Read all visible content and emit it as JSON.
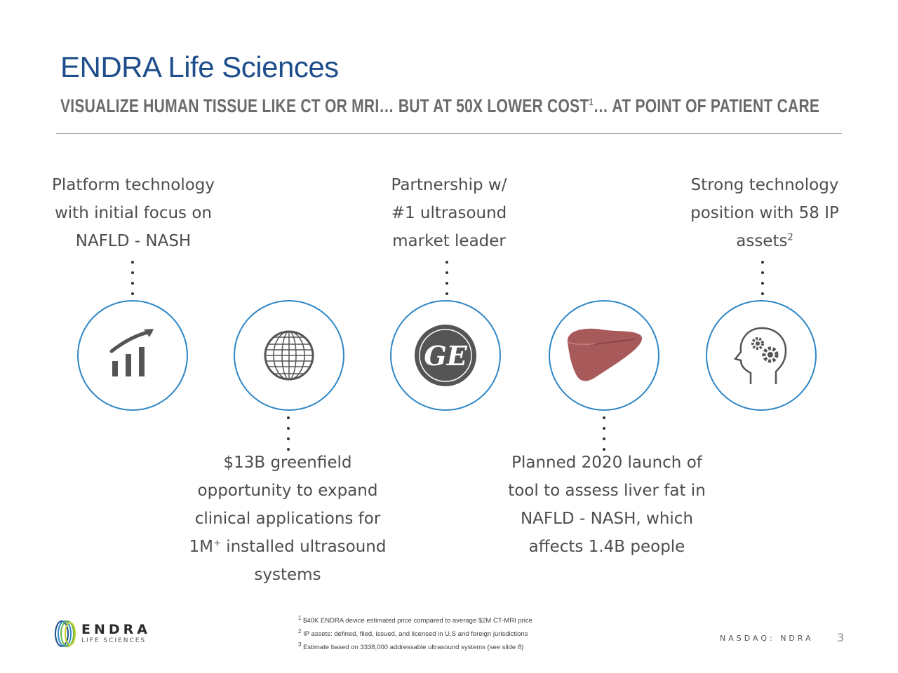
{
  "header": {
    "title": "ENDRA Life Sciences",
    "subtitle": "VISUALIZE HUMAN TISSUE LIKE CT OR MRI… BUT AT 50X LOWER COST",
    "subtitle_sup": "1",
    "subtitle_tail": "… AT POINT OF PATIENT CARE"
  },
  "top_items": [
    {
      "lines": [
        "Platform technology",
        "with initial focus on",
        "NAFLD - NASH"
      ],
      "icon": "bar-chart-growth-icon"
    },
    {
      "lines": [
        "Partnership w/",
        "#1 ultrasound",
        "market leader"
      ],
      "icon": "ge-logo"
    },
    {
      "lines": [
        "Strong technology",
        "position with 58 IP",
        "assets"
      ],
      "sup": "2",
      "icon": "head-gears-icon"
    }
  ],
  "bottom_items": [
    {
      "lines": [
        "$13B greenfield",
        "opportunity to expand",
        "clinical applications for",
        "1M",
        " installed ultrasound",
        "systems"
      ],
      "sup": "+",
      "icon": "globe-icon"
    },
    {
      "lines": [
        "Planned 2020 launch of",
        "tool to assess liver fat in",
        "NAFLD - NASH, which",
        "affects 1.4B people"
      ],
      "icon": "liver-icon"
    }
  ],
  "footnotes": [
    {
      "num": "1",
      "text": "$40K ENDRA device estimated price compared to average $2M CT-MRI price"
    },
    {
      "num": "2",
      "text": "IP assets:  defined, filed, issued, and licensed in U.S and foreign jurisdictions"
    },
    {
      "num": "3",
      "text": "Estimate based on 3338,000 addressable ultrasound systems (see slide 8)"
    }
  ],
  "logo": {
    "name": "ENDRA",
    "tagline": "LIFE SCIENCES"
  },
  "ticker": "NASDAQ: NDRA",
  "page_number": "3",
  "colors": {
    "title_blue": "#1f4e8c",
    "circle_blue": "#2e86c6",
    "icon_gray": "#555555",
    "liver_red": "#a85a5a"
  }
}
